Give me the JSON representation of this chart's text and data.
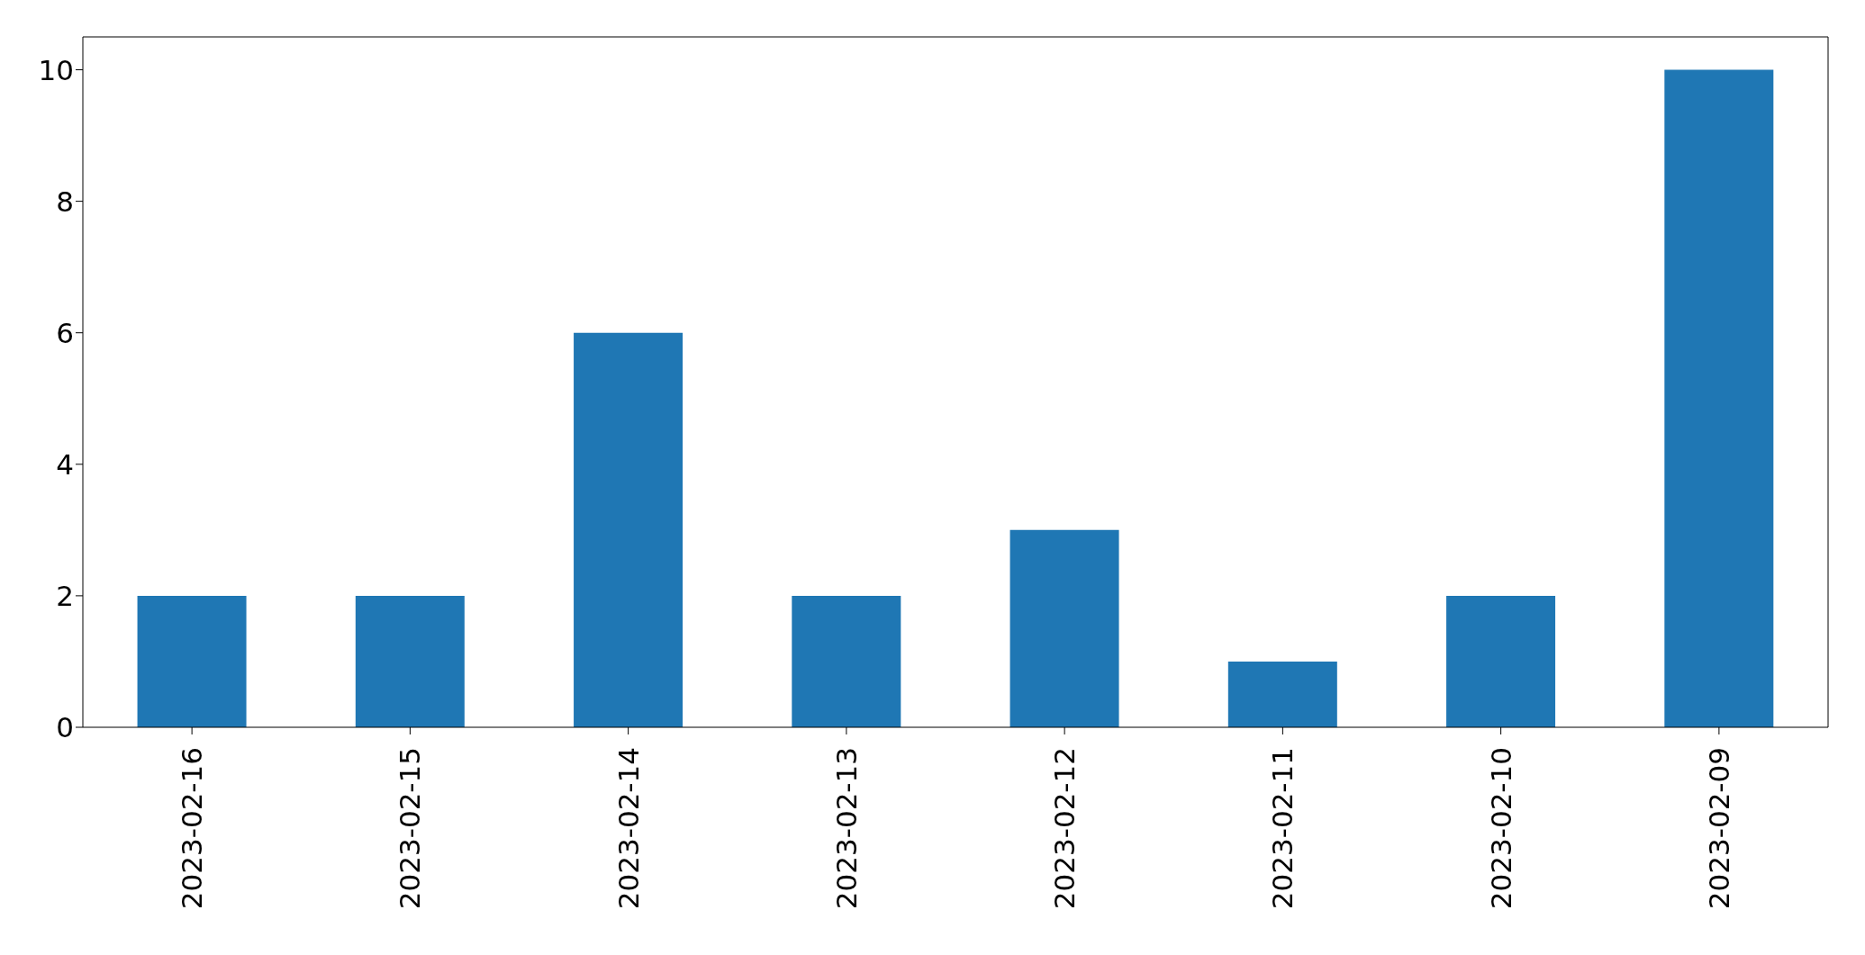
{
  "chart_data": {
    "type": "bar",
    "categories": [
      "2023-02-16",
      "2023-02-15",
      "2023-02-14",
      "2023-02-13",
      "2023-02-12",
      "2023-02-11",
      "2023-02-10",
      "2023-02-09"
    ],
    "values": [
      2,
      2,
      6,
      2,
      3,
      1,
      2,
      10
    ],
    "color": "#1f77b4",
    "ylim": [
      0,
      10.5
    ],
    "yticks": [
      0,
      2,
      4,
      6,
      8,
      10
    ],
    "grid": false
  }
}
